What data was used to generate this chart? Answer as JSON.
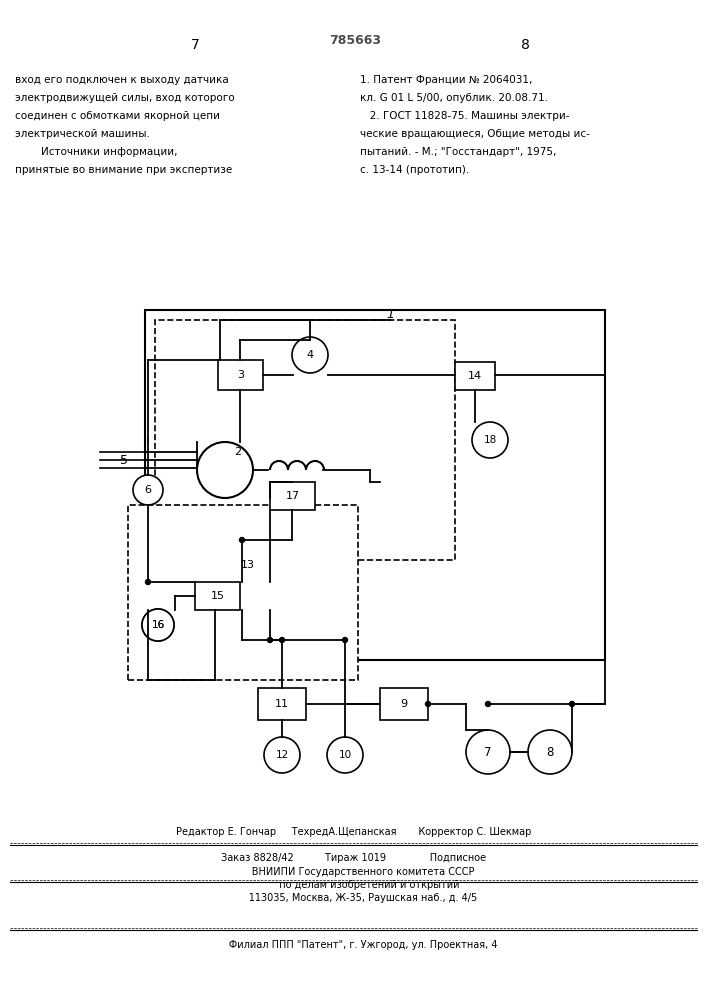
{
  "page_number_left": "7",
  "page_number_right": "8",
  "stamp_text": "785663",
  "left_column_text": [
    "вход его подключен к выходу датчика",
    "электродвижущей силы, вход которого",
    "соединен с обмотками якорной цепи",
    "электрической машины.",
    "        Источники информации,",
    "принятые во внимание при экспертизе"
  ],
  "right_column_text": [
    "1. Патент Франции № 2064031,",
    "кл. G 01 L 5/00, опублик. 20.08.71.",
    "   2. ГОСТ 11828-75. Машины электри-",
    "ческие вращающиеся, Общие методы ис-",
    "пытаний. - М.; \"Госстандарт\", 1975,",
    "с. 13-14 (прототип)."
  ],
  "footer_line1": "Редактор Е. Гончар     ТехредА.Щепанская       Корректор С. Шекмар",
  "footer_line2": "Заказ 8828/42          Тираж 1019              Подписное",
  "footer_line3": "      ВНИИПИ Государственного комитета СССР",
  "footer_line4": "          по делам изобретений и открытий",
  "footer_line5": "      113035, Москва, Ж-35, Раушская наб., д. 4/5",
  "footer_line6": "      Филиал ППП \"Патент\", г. Ужгород, ул. Проектная, 4",
  "bg_color": "#ffffff",
  "line_color": "#000000"
}
